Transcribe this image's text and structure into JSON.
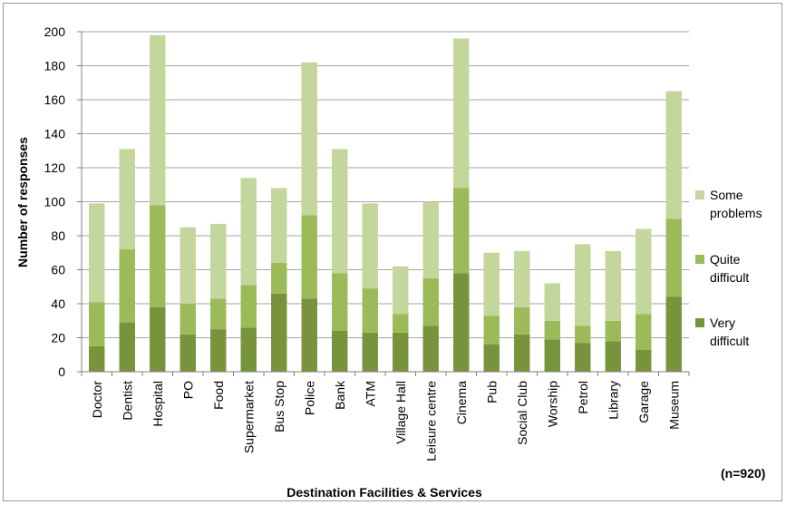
{
  "chart_data": {
    "type": "bar",
    "stacked": true,
    "categories": [
      "Doctor",
      "Dentist",
      "Hospital",
      "PO",
      "Food",
      "Supermarket",
      "Bus Stop",
      "Police",
      "Bank",
      "ATM",
      "Village Hall",
      "Leisure centre",
      "Cinema",
      "Pub",
      "Social Club",
      "Worship",
      "Petrol",
      "Library",
      "Garage",
      "Museum"
    ],
    "series": [
      {
        "name": "Very difficult",
        "color": "#77933c",
        "values": [
          15,
          29,
          38,
          22,
          25,
          26,
          46,
          43,
          24,
          23,
          23,
          27,
          58,
          16,
          22,
          19,
          17,
          18,
          13,
          44
        ]
      },
      {
        "name": "Quite difficult",
        "color": "#9bbb59",
        "values": [
          26,
          43,
          60,
          18,
          18,
          25,
          18,
          49,
          34,
          26,
          11,
          28,
          50,
          17,
          16,
          11,
          10,
          12,
          21,
          46
        ]
      },
      {
        "name": "Some problems",
        "color": "#c3d69b",
        "values": [
          58,
          59,
          100,
          45,
          44,
          63,
          44,
          90,
          73,
          50,
          28,
          45,
          88,
          37,
          33,
          22,
          48,
          41,
          50,
          75
        ]
      }
    ],
    "xlabel": "Destination Facilities & Services",
    "ylabel": "Number of responses",
    "ylim": [
      0,
      200
    ],
    "yticks": [
      0,
      20,
      40,
      60,
      80,
      100,
      120,
      140,
      160,
      180,
      200
    ],
    "grid": true,
    "legend": [
      "Some problems",
      "Quite difficult",
      "Very difficult"
    ],
    "legend_position": "right",
    "note": "(n=920)"
  }
}
